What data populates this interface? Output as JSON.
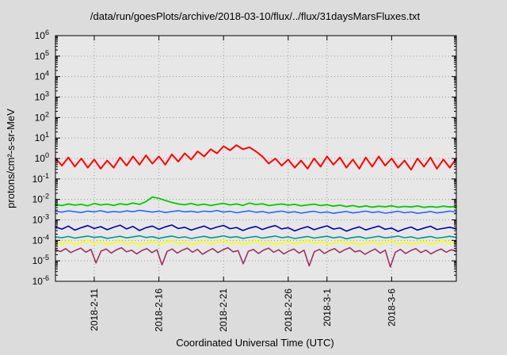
{
  "chart_data": {
    "type": "line",
    "title": "/data/run/goesPlots/archive/2018-03-10/flux/../flux/31daysMarsFluxes.txt",
    "xlabel": "Coordinated Universal Time (UTC)",
    "ylabel": "protons/cm²-s-sr-MeV",
    "y_scale": "log10",
    "ylim_exponents": [
      -6,
      6
    ],
    "y_tick_exponents": [
      6,
      5,
      4,
      3,
      2,
      1,
      0,
      -1,
      -2,
      -3,
      -4,
      -5,
      -6
    ],
    "x_range_days": [
      0,
      31
    ],
    "x_ticks": [
      {
        "day": 3,
        "label": "2018-2-11"
      },
      {
        "day": 8,
        "label": "2018-2-16"
      },
      {
        "day": 13,
        "label": "2018-2-21"
      },
      {
        "day": 18,
        "label": "2018-2-26"
      },
      {
        "day": 21,
        "label": "2018-3-1"
      },
      {
        "day": 26,
        "label": "2018-3-6"
      }
    ],
    "grid": true,
    "legend": "none",
    "page_background": "#dcdcdc",
    "plot_background": "#e7e7e7",
    "grid_color": "#999999",
    "series": [
      {
        "name": "purple",
        "color": "#993366",
        "width": 1.6,
        "values_log10": [
          -4.45,
          -4.55,
          -4.4,
          -4.6,
          -4.48,
          -4.38,
          -4.58,
          -4.44,
          -5.1,
          -4.52,
          -4.42,
          -4.62,
          -4.46,
          -4.36,
          -4.56,
          -4.48,
          -4.66,
          -4.5,
          -4.4,
          -4.6,
          -4.46,
          -5.2,
          -4.54,
          -4.42,
          -4.62,
          -4.48,
          -4.38,
          -4.58,
          -4.44,
          -4.68,
          -4.52,
          -4.4,
          -4.6,
          -4.46,
          -4.36,
          -4.56,
          -4.5,
          -5.15,
          -4.54,
          -4.44,
          -4.64,
          -4.48,
          -4.38,
          -4.58,
          -4.46,
          -4.66,
          -4.52,
          -4.42,
          -4.62,
          -4.48,
          -5.25,
          -4.56,
          -4.44,
          -4.64,
          -4.5,
          -4.4,
          -4.6,
          -4.46,
          -4.36,
          -4.56,
          -4.5,
          -4.68,
          -4.54,
          -4.42,
          -4.62,
          -4.48,
          -5.3,
          -4.58,
          -4.44,
          -4.64,
          -4.5,
          -4.4,
          -4.6,
          -4.48,
          -4.66,
          -4.52,
          -4.42,
          -4.58,
          -4.46,
          -4.52
        ]
      },
      {
        "name": "yellow",
        "color": "#ffff00",
        "width": 1.8,
        "values_log10": [
          -4.08,
          -4.16,
          -4.05,
          -4.18,
          -4.1,
          -4.02,
          -4.14,
          -4.07,
          -4.2,
          -4.12,
          -4.04,
          -4.16,
          -4.09,
          -4.22,
          -4.13,
          -4.05,
          -4.17,
          -4.1,
          -4.01,
          -4.15,
          -4.08,
          -4.2,
          -4.12,
          -4.04,
          -4.16,
          -4.09,
          -4.0,
          -4.14,
          -4.07,
          -4.19,
          -4.11,
          -4.03,
          -4.15,
          -4.08,
          -4.21,
          -4.13,
          -4.05,
          -4.17,
          -4.1,
          -4.02,
          -4.14,
          -4.07,
          -4.19,
          -4.12,
          -4.04,
          -4.16,
          -4.09,
          -4.21,
          -4.13,
          -4.06,
          -4.18,
          -4.1,
          -4.02,
          -4.15,
          -4.08,
          -4.2,
          -4.12,
          -4.05,
          -4.17,
          -4.09,
          -4.01,
          -4.13,
          -4.08
        ]
      },
      {
        "name": "teal",
        "color": "#009988",
        "width": 1.6,
        "values_log10": [
          -3.83,
          -3.87,
          -3.81,
          -3.89,
          -3.84,
          -3.79,
          -3.86,
          -3.82,
          -3.9,
          -3.85,
          -3.8,
          -3.88,
          -3.83,
          -3.78,
          -3.86,
          -3.82,
          -3.9,
          -3.84,
          -3.79,
          -3.87,
          -3.83,
          -3.91,
          -3.85,
          -3.8,
          -3.88,
          -3.84,
          -3.78,
          -3.86,
          -3.82,
          -3.9,
          -3.85,
          -3.81,
          -3.89,
          -3.84,
          -3.79,
          -3.87,
          -3.83,
          -3.91,
          -3.86,
          -3.81,
          -3.89,
          -3.84,
          -3.8,
          -3.88,
          -3.83,
          -3.92,
          -3.86,
          -3.82,
          -3.9,
          -3.85,
          -3.8,
          -3.88,
          -3.84,
          -3.79,
          -3.87,
          -3.83,
          -3.91,
          -3.86,
          -3.81,
          -3.89,
          -3.85,
          -3.8,
          -3.86
        ]
      },
      {
        "name": "navy",
        "color": "#0000aa",
        "width": 1.6,
        "values_log10": [
          -3.35,
          -3.45,
          -3.3,
          -3.5,
          -3.38,
          -3.28,
          -3.42,
          -3.33,
          -3.48,
          -3.36,
          -3.26,
          -3.44,
          -3.32,
          -3.52,
          -3.38,
          -3.3,
          -3.46,
          -3.34,
          -3.25,
          -3.42,
          -3.36,
          -3.5,
          -3.4,
          -3.3,
          -3.45,
          -3.35,
          -3.27,
          -3.43,
          -3.37,
          -3.52,
          -3.4,
          -3.32,
          -3.47,
          -3.36,
          -3.28,
          -3.44,
          -3.38,
          -3.54,
          -3.42,
          -3.33,
          -3.48,
          -3.38,
          -3.29,
          -3.45,
          -3.39,
          -3.55,
          -3.43,
          -3.34,
          -3.49,
          -3.39,
          -3.3,
          -3.46,
          -3.4,
          -3.56,
          -3.44,
          -3.35,
          -3.5,
          -3.4,
          -3.31,
          -3.47,
          -3.41,
          -3.36,
          -3.44
        ]
      },
      {
        "name": "light-blue",
        "color": "#2e64fe",
        "width": 1.6,
        "values_log10": [
          -2.58,
          -2.62,
          -2.56,
          -2.6,
          -2.64,
          -2.57,
          -2.61,
          -2.55,
          -2.63,
          -2.59,
          -2.62,
          -2.56,
          -2.6,
          -2.53,
          -2.58,
          -2.62,
          -2.57,
          -2.64,
          -2.59,
          -2.55,
          -2.61,
          -2.58,
          -2.63,
          -2.57,
          -2.6,
          -2.54,
          -2.62,
          -2.58,
          -2.65,
          -2.6,
          -2.56,
          -2.63,
          -2.59,
          -2.66,
          -2.61,
          -2.57,
          -2.64,
          -2.6,
          -2.67,
          -2.62,
          -2.58,
          -2.65,
          -2.61,
          -2.68,
          -2.63,
          -2.59,
          -2.66,
          -2.62,
          -2.57,
          -2.64,
          -2.6,
          -2.67,
          -2.63,
          -2.58,
          -2.65,
          -2.61,
          -2.68,
          -2.64,
          -2.59,
          -2.66,
          -2.62,
          -2.57,
          -2.63
        ]
      },
      {
        "name": "green",
        "color": "#00cc00",
        "width": 1.8,
        "values_log10": [
          -2.25,
          -2.3,
          -2.22,
          -2.28,
          -2.24,
          -2.31,
          -2.2,
          -2.27,
          -2.23,
          -2.29,
          -2.21,
          -2.26,
          -2.18,
          -2.24,
          -2.1,
          -1.88,
          -1.95,
          -2.05,
          -2.15,
          -2.22,
          -2.26,
          -2.2,
          -2.28,
          -2.23,
          -2.3,
          -2.24,
          -2.19,
          -2.27,
          -2.22,
          -2.29,
          -2.18,
          -2.25,
          -2.21,
          -2.3,
          -2.26,
          -2.22,
          -2.28,
          -2.24,
          -2.31,
          -2.27,
          -2.23,
          -2.3,
          -2.26,
          -2.33,
          -2.28,
          -2.35,
          -2.3,
          -2.37,
          -2.32,
          -2.38,
          -2.33,
          -2.36,
          -2.31,
          -2.38,
          -2.34,
          -2.37,
          -2.32,
          -2.39,
          -2.35,
          -2.38,
          -2.33,
          -2.37,
          -2.34
        ]
      },
      {
        "name": "red",
        "color": "#ff0000",
        "width": 2.0,
        "values_log10": [
          0.0,
          -0.35,
          0.05,
          -0.4,
          0.0,
          -0.45,
          -0.05,
          -0.5,
          -0.1,
          -0.45,
          0.05,
          -0.35,
          0.1,
          -0.3,
          0.15,
          -0.25,
          0.1,
          -0.3,
          0.2,
          -0.15,
          0.25,
          -0.05,
          0.35,
          0.1,
          0.45,
          0.25,
          0.6,
          0.4,
          0.65,
          0.45,
          0.55,
          0.35,
          0.1,
          -0.25,
          0.0,
          -0.35,
          -0.05,
          -0.45,
          -0.1,
          -0.5,
          0.0,
          -0.4,
          0.1,
          -0.3,
          0.05,
          -0.45,
          -0.05,
          -0.5,
          0.05,
          -0.4,
          0.1,
          -0.35,
          0.0,
          -0.45,
          -0.1,
          -0.55,
          0.0,
          -0.4,
          0.05,
          -0.5,
          -0.05,
          -0.45,
          0.0
        ]
      }
    ]
  }
}
